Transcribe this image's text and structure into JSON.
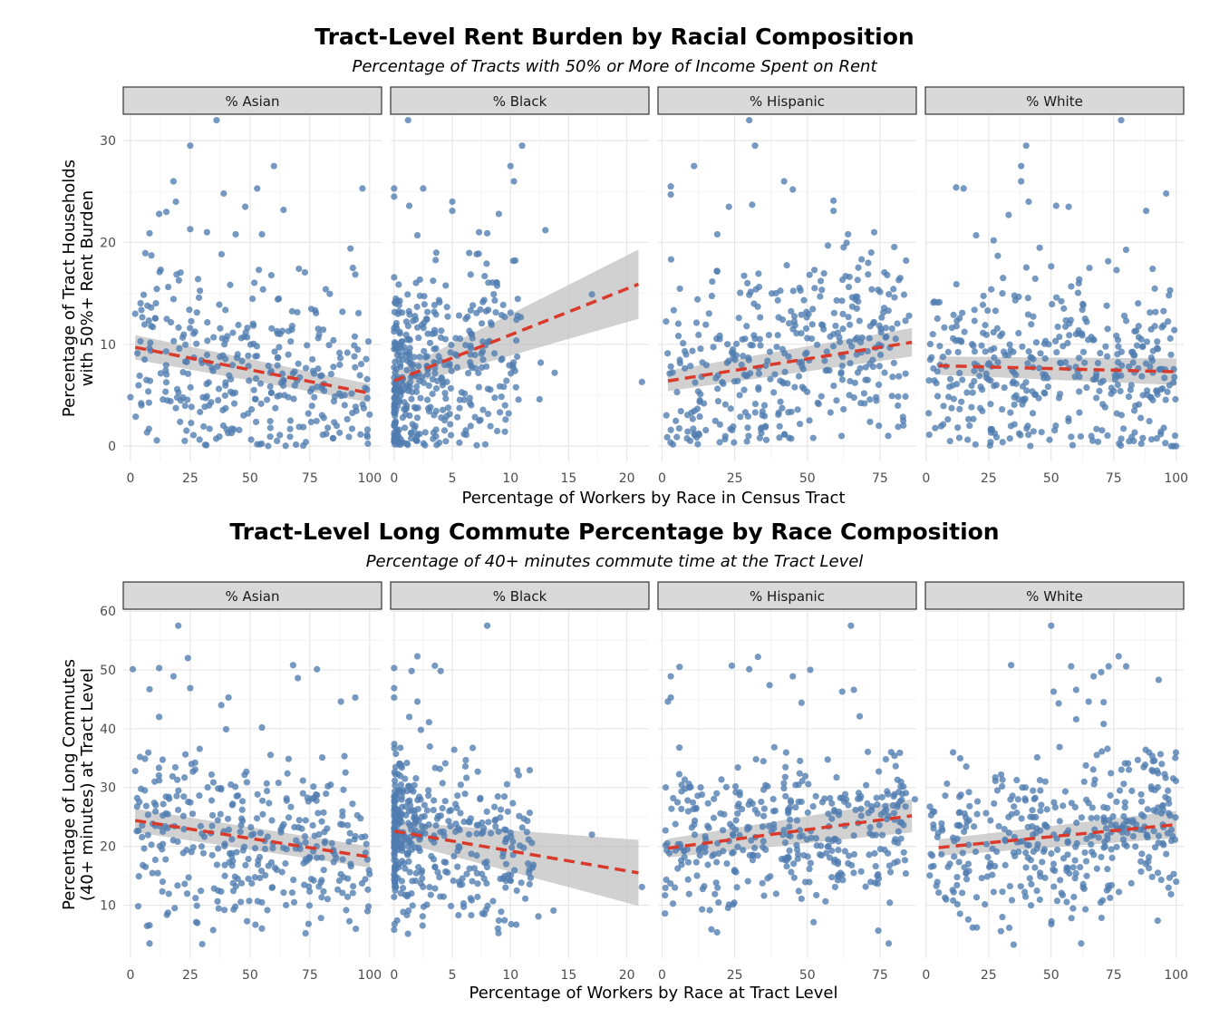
{
  "chart_data": [
    {
      "type": "scatter",
      "title": "Tract-Level Rent Burden by Racial Composition",
      "subtitle": "Percentage of Tracts with 50% or More of Income Spent on Rent",
      "xlabel": "Percentage of Workers by Race in Census Tract",
      "ylabel": "Percentage of Tract Households\nwith 50%+ Rent Burden",
      "ylim": [
        -1.5,
        32.5
      ],
      "yticks": [
        0,
        10,
        20,
        30
      ],
      "grid": true,
      "point_color": "#4f7cb0",
      "trend_color": "#d93a2b",
      "band_color": "#bdbdbd",
      "facets": [
        {
          "label": "% Asian",
          "xlim": [
            -3,
            105
          ],
          "xticks": [
            0,
            25,
            50,
            75,
            100
          ],
          "trend": {
            "x": [
              2,
              100
            ],
            "y": [
              9.7,
              5.2
            ],
            "band": [
              1.2,
              0.9
            ]
          },
          "outliers": [
            [
              36,
              32
            ],
            [
              25,
              29.5
            ],
            [
              60,
              27.5
            ],
            [
              18,
              26
            ],
            [
              53,
              25.3
            ],
            [
              97,
              25.3
            ],
            [
              39,
              24.8
            ],
            [
              19,
              24
            ],
            [
              12,
              22.8
            ],
            [
              48,
              23.5
            ],
            [
              64,
              23.2
            ],
            [
              15,
              23
            ],
            [
              25,
              21.3
            ],
            [
              32,
              21
            ],
            [
              44,
              20.8
            ],
            [
              55,
              20.8
            ],
            [
              92,
              19.4
            ],
            [
              8,
              20.9
            ],
            [
              93,
              17.5
            ],
            [
              0,
              4.8
            ],
            [
              2,
              13
            ],
            [
              100,
              3.1
            ]
          ],
          "n": 330,
          "seed": 11,
          "gen": {
            "xmin": 2,
            "xmax": 100,
            "xmode": "uniform",
            "ycenter": [
              9.7,
              5.2
            ],
            "ysd": 5.0,
            "ymin": 0,
            "ymax": 19
          }
        },
        {
          "label": "% Black",
          "xlim": [
            -0.3,
            21.9
          ],
          "xticks": [
            0,
            5,
            10,
            15,
            20
          ],
          "trend": {
            "x": [
              0,
              21
            ],
            "y": [
              6.4,
              15.9
            ],
            "band": [
              0.8,
              3.4
            ]
          },
          "outliers": [
            [
              1.2,
              32
            ],
            [
              11,
              29.5
            ],
            [
              10,
              27.5
            ],
            [
              10.3,
              26
            ],
            [
              0,
              25.3
            ],
            [
              2.5,
              25.3
            ],
            [
              0,
              24.5
            ],
            [
              5,
              24
            ],
            [
              5,
              23.1
            ],
            [
              9,
              22.8
            ],
            [
              1.3,
              23.6
            ],
            [
              13,
              21.2
            ],
            [
              7.3,
              21
            ],
            [
              8,
              20.9
            ],
            [
              2,
              20.7
            ],
            [
              17,
              14.9
            ],
            [
              21.3,
              6.3
            ],
            [
              13.8,
              7.2
            ],
            [
              12.6,
              8.2
            ],
            [
              12.5,
              4.6
            ]
          ],
          "n": 400,
          "seed": 22,
          "gen": {
            "xmin": 0,
            "xmax": 11,
            "xmode": "skew",
            "ycenter": [
              5.5,
              9.5
            ],
            "ysd": 4.5,
            "ymin": 0,
            "ymax": 19
          }
        },
        {
          "label": "% Hispanic",
          "xlim": [
            -1.4,
            87.5
          ],
          "xticks": [
            0,
            25,
            50,
            75
          ],
          "trend": {
            "x": [
              2,
              86
            ],
            "y": [
              6.4,
              10.2
            ],
            "band": [
              1.0,
              1.4
            ]
          },
          "outliers": [
            [
              30,
              32
            ],
            [
              32,
              29.5
            ],
            [
              11,
              27.5
            ],
            [
              42,
              26
            ],
            [
              3,
              25.5
            ],
            [
              3,
              24.7
            ],
            [
              45,
              25.2
            ],
            [
              59,
              24.1
            ],
            [
              23,
              23.5
            ],
            [
              31,
              23.7
            ],
            [
              59,
              23.1
            ],
            [
              64,
              20.8
            ],
            [
              73,
              21
            ],
            [
              19,
              20.8
            ],
            [
              85,
              12.8
            ],
            [
              83,
              2.5
            ]
          ],
          "n": 370,
          "seed": 33,
          "gen": {
            "xmin": 1,
            "xmax": 84,
            "xmode": "uniform",
            "ycenter": [
              6.4,
              10.2
            ],
            "ysd": 4.8,
            "ymin": 0,
            "ymax": 20
          }
        },
        {
          "label": "% White",
          "xlim": [
            -0.3,
            103
          ],
          "xticks": [
            0,
            25,
            50,
            75,
            100
          ],
          "trend": {
            "x": [
              5,
              100
            ],
            "y": [
              7.9,
              7.3
            ],
            "band": [
              0.9,
              1.3
            ]
          },
          "outliers": [
            [
              78,
              32
            ],
            [
              40,
              29.5
            ],
            [
              38,
              27.5
            ],
            [
              38,
              26
            ],
            [
              12,
              25.4
            ],
            [
              15,
              25.3
            ],
            [
              96,
              24.8
            ],
            [
              41,
              24
            ],
            [
              52,
              23.6
            ],
            [
              57,
              23.5
            ],
            [
              33,
              22.7
            ],
            [
              88,
              23.1
            ],
            [
              20,
              20.7
            ],
            [
              27,
              20.2
            ],
            [
              100,
              0
            ],
            [
              99,
              0
            ],
            [
              98,
              0
            ]
          ],
          "n": 390,
          "seed": 44,
          "gen": {
            "xmin": 1,
            "xmax": 100,
            "xmode": "uniform",
            "ycenter": [
              7.9,
              7.3
            ],
            "ysd": 5.0,
            "ymin": 0,
            "ymax": 20
          }
        }
      ]
    },
    {
      "type": "scatter",
      "title": "Tract-Level Long Commute Percentage by Race Composition",
      "subtitle": "Percentage of 40+ minutes commute time at the Tract Level",
      "xlabel": "Percentage of Workers by Race at Tract Level",
      "ylabel": "Percentage of Long Commutes\n(40+ minutes) at Tract Level",
      "ylim": [
        1,
        60
      ],
      "yticks": [
        10,
        20,
        30,
        40,
        50,
        60
      ],
      "grid": true,
      "point_color": "#4f7cb0",
      "trend_color": "#d93a2b",
      "band_color": "#bdbdbd",
      "facets": [
        {
          "label": "% Asian",
          "xlim": [
            -3,
            105
          ],
          "xticks": [
            0,
            25,
            50,
            75,
            100
          ],
          "trend": {
            "x": [
              2,
              100
            ],
            "y": [
              24.4,
              18.2
            ],
            "band": [
              2.0,
              1.8
            ]
          },
          "outliers": [
            [
              20,
              57.5
            ],
            [
              24,
              52
            ],
            [
              12,
              50.3
            ],
            [
              1,
              50.1
            ],
            [
              68,
              50.8
            ],
            [
              78,
              50.1
            ],
            [
              18,
              48.9
            ],
            [
              70,
              48.6
            ],
            [
              25,
              46.9
            ],
            [
              8,
              46.7
            ],
            [
              94,
              45.3
            ],
            [
              41,
              45.3
            ],
            [
              88,
              44.6
            ],
            [
              38,
              44
            ],
            [
              12,
              42
            ],
            [
              55,
              40.2
            ],
            [
              40,
              39.9
            ],
            [
              4,
              35.2
            ],
            [
              2,
              32.8
            ],
            [
              8,
              6.6
            ],
            [
              8,
              3.5
            ],
            [
              30,
              3.4
            ],
            [
              100,
              15.3
            ]
          ],
          "n": 330,
          "seed": 55,
          "gen": {
            "xmin": 2,
            "xmax": 100,
            "xmode": "uniform",
            "ycenter": [
              24.4,
              18.2
            ],
            "ysd": 7.2,
            "ymin": 5,
            "ymax": 37
          }
        },
        {
          "label": "% Black",
          "xlim": [
            -0.3,
            21.9
          ],
          "xticks": [
            0,
            5,
            10,
            15,
            20
          ],
          "trend": {
            "x": [
              0,
              21
            ],
            "y": [
              22.6,
              15.5
            ],
            "band": [
              1.6,
              5.6
            ]
          },
          "outliers": [
            [
              8,
              57.5
            ],
            [
              2,
              52.3
            ],
            [
              0,
              50.3
            ],
            [
              3.5,
              50.7
            ],
            [
              1.5,
              49.8
            ],
            [
              4,
              49.8
            ],
            [
              0,
              46.9
            ],
            [
              0,
              45.3
            ],
            [
              2,
              44.6
            ],
            [
              1.3,
              42
            ],
            [
              3,
              41.1
            ],
            [
              2.3,
              39.8
            ],
            [
              17,
              22
            ],
            [
              21.3,
              13.1
            ],
            [
              13.7,
              9.1
            ],
            [
              12.4,
              8.1
            ],
            [
              9,
              7.4
            ],
            [
              10.5,
              6.7
            ]
          ],
          "n": 400,
          "seed": 66,
          "gen": {
            "xmin": 0,
            "xmax": 12,
            "xmode": "skew",
            "ycenter": [
              22.6,
              18.0
            ],
            "ysd": 7.0,
            "ymin": 5,
            "ymax": 38
          }
        },
        {
          "label": "% Hispanic",
          "xlim": [
            -1.4,
            87.5
          ],
          "xticks": [
            0,
            25,
            50,
            75
          ],
          "trend": {
            "x": [
              2,
              86
            ],
            "y": [
              19.7,
              25.2
            ],
            "band": [
              1.6,
              2.8
            ]
          },
          "outliers": [
            [
              65,
              57.5
            ],
            [
              33,
              52.2
            ],
            [
              6,
              50.5
            ],
            [
              24,
              50.7
            ],
            [
              30,
              50.1
            ],
            [
              51,
              50
            ],
            [
              3,
              48.9
            ],
            [
              45,
              48.9
            ],
            [
              37,
              47.4
            ],
            [
              62,
              46.3
            ],
            [
              66,
              46.6
            ],
            [
              48,
              44.4
            ],
            [
              3,
              45.3
            ],
            [
              2,
              44.6
            ],
            [
              68,
              42.1
            ],
            [
              80,
              35.4
            ],
            [
              87,
              28
            ],
            [
              78,
              3.5
            ],
            [
              1,
              8.6
            ]
          ],
          "n": 370,
          "seed": 77,
          "gen": {
            "xmin": 1,
            "xmax": 84,
            "xmode": "uniform",
            "ycenter": [
              19.7,
              25.2
            ],
            "ysd": 7.0,
            "ymin": 4,
            "ymax": 37
          }
        },
        {
          "label": "% White",
          "xlim": [
            -0.3,
            103
          ],
          "xticks": [
            0,
            25,
            50,
            75,
            100
          ],
          "trend": {
            "x": [
              5,
              100
            ],
            "y": [
              19.8,
              23.7
            ],
            "band": [
              1.4,
              2.3
            ]
          },
          "outliers": [
            [
              50,
              57.5
            ],
            [
              77,
              52.3
            ],
            [
              73,
              50.6
            ],
            [
              80,
              50.6
            ],
            [
              70,
              49.6
            ],
            [
              34,
              50.8
            ],
            [
              58,
              50.6
            ],
            [
              67,
              48.9
            ],
            [
              93,
              48.3
            ],
            [
              51,
              46.3
            ],
            [
              60,
              46.6
            ],
            [
              53,
              44.3
            ],
            [
              65,
              44.6
            ],
            [
              71,
              44.5
            ],
            [
              60,
              41.6
            ],
            [
              71,
              40.8
            ],
            [
              99,
              15.3
            ],
            [
              100,
              14
            ],
            [
              35,
              3.3
            ],
            [
              62,
              3.5
            ]
          ],
          "n": 390,
          "seed": 88,
          "gen": {
            "xmin": 1,
            "xmax": 100,
            "xmode": "uniform",
            "ycenter": [
              19.8,
              23.7
            ],
            "ysd": 7.0,
            "ymin": 5,
            "ymax": 37
          }
        }
      ]
    }
  ]
}
